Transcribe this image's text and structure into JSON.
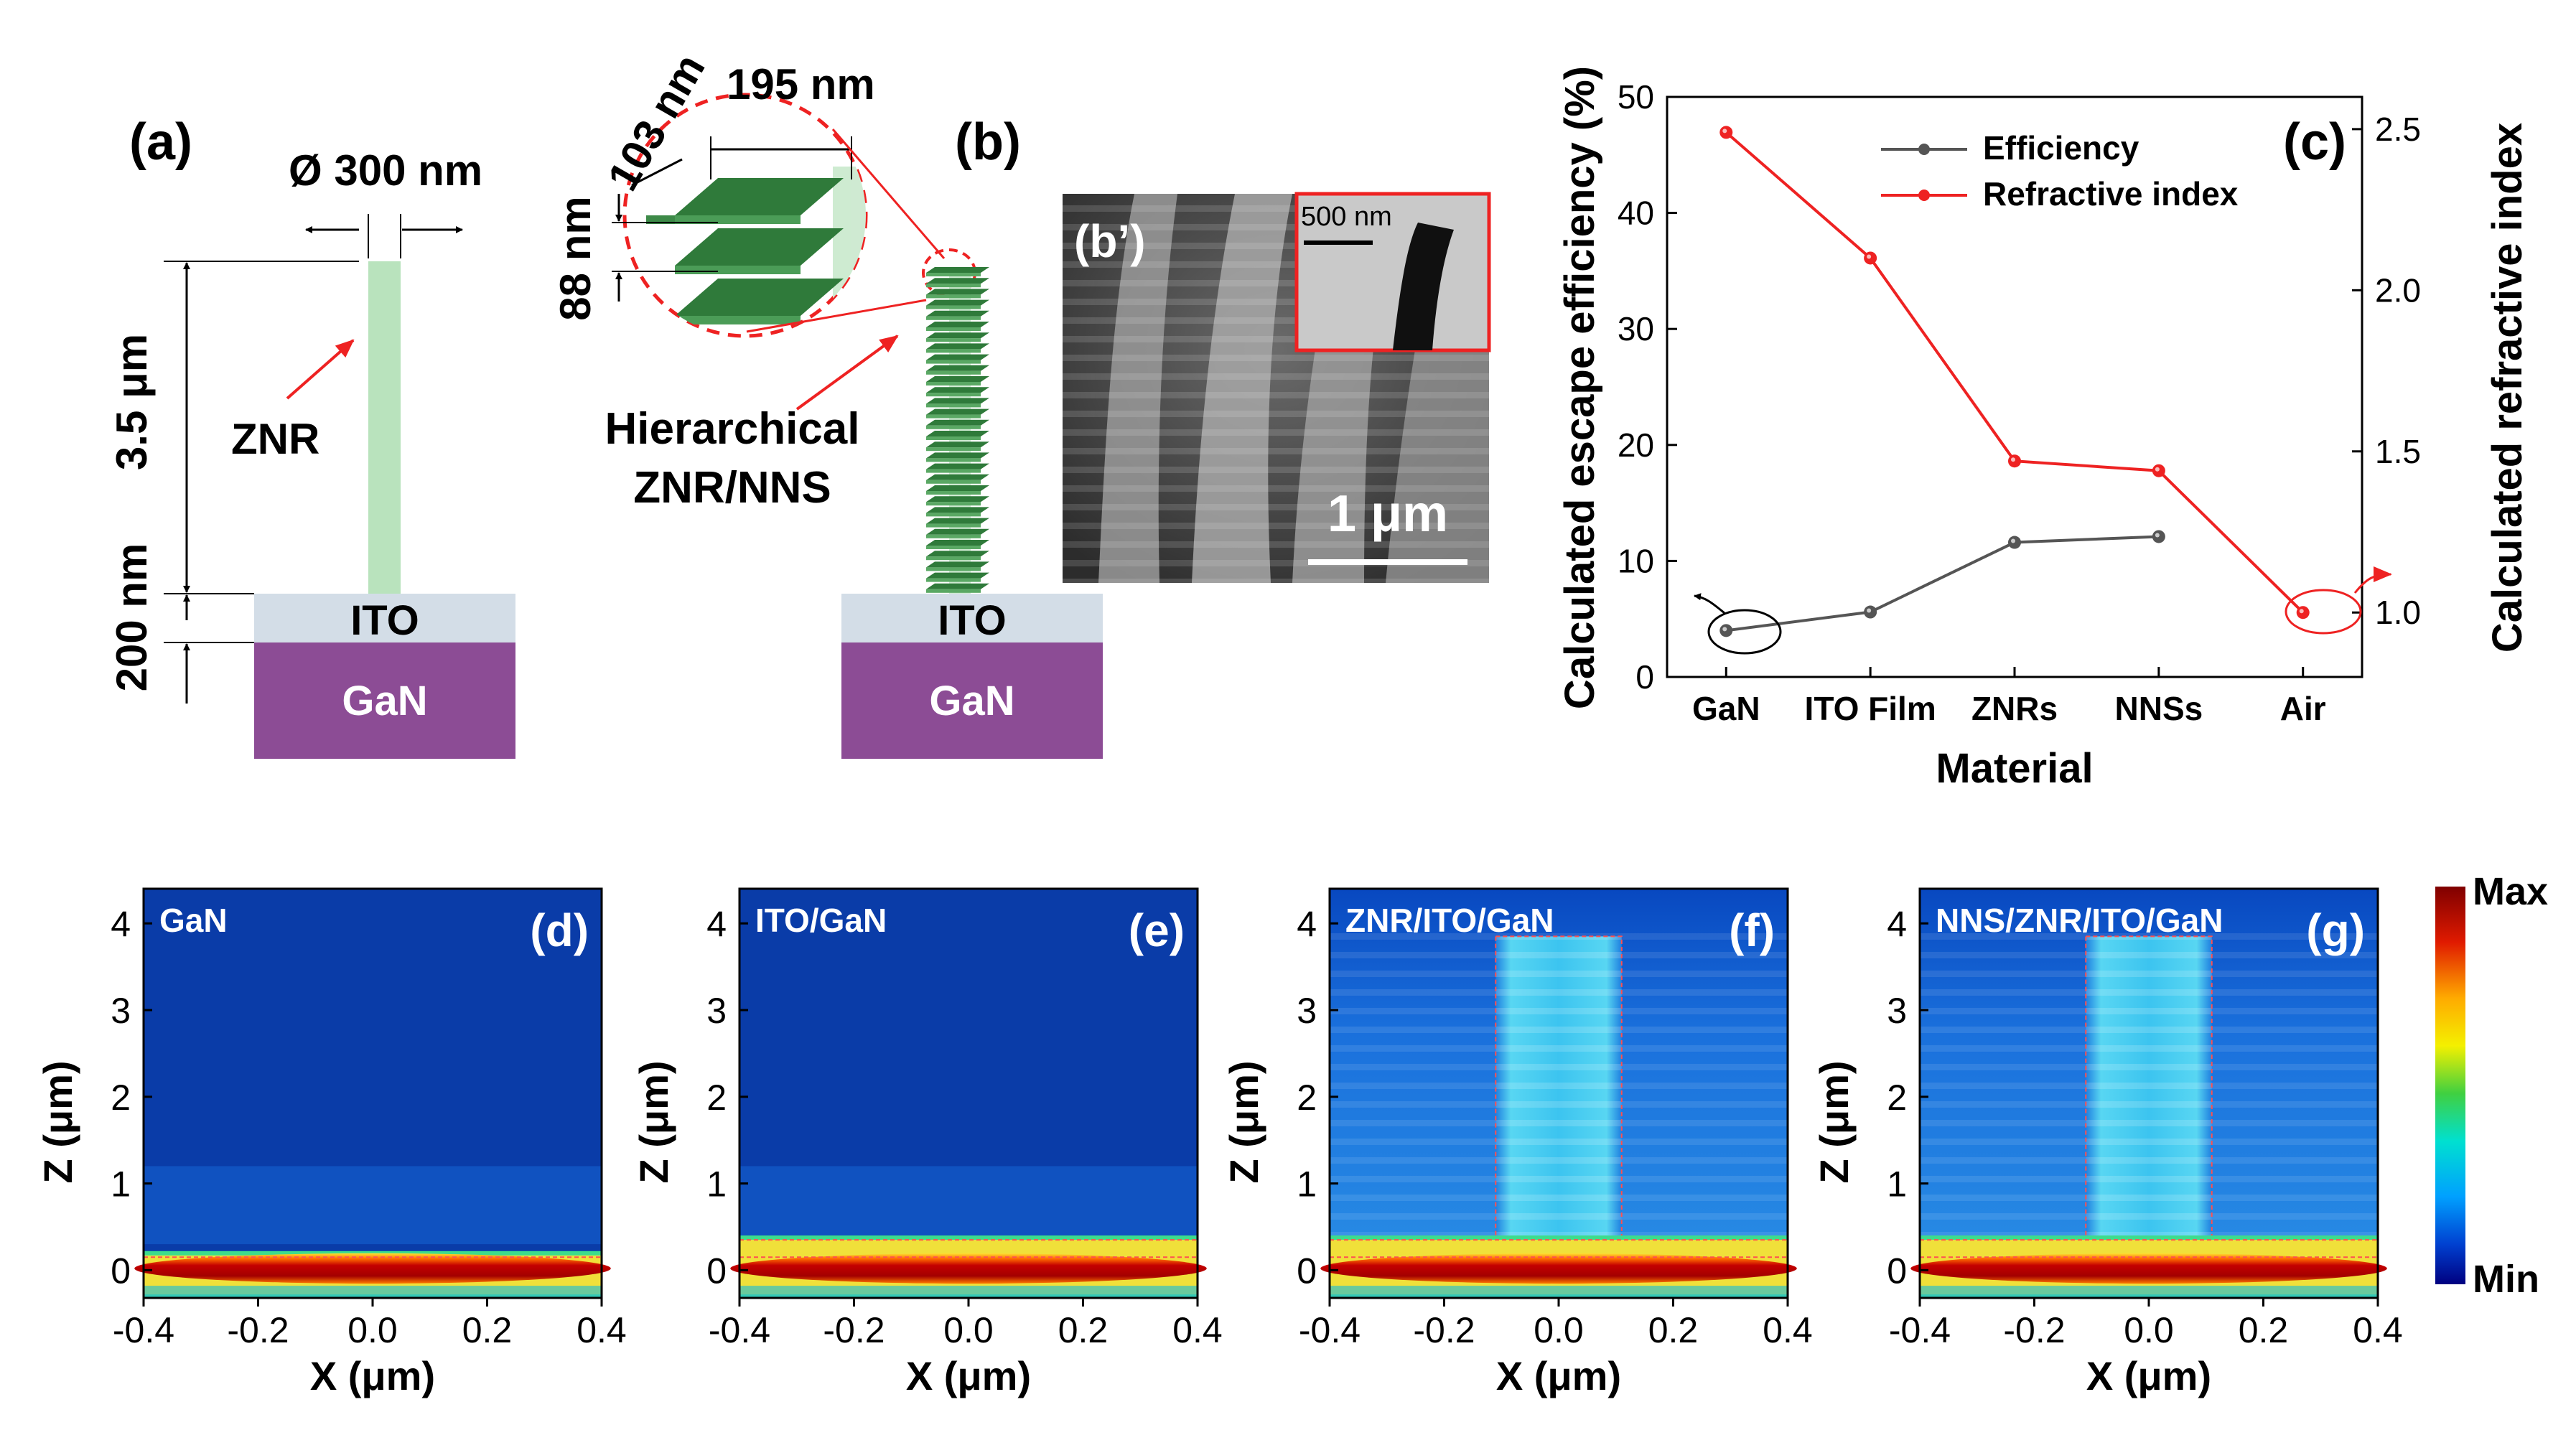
{
  "panels": {
    "a": {
      "label": "(a)",
      "diameter": "Ø 300 nm",
      "height": "3.5 μm",
      "ito_thickness": "200 nm",
      "rod_label": "ZNR",
      "ito": "ITO",
      "gan": "GaN"
    },
    "b": {
      "label": "(b)",
      "width": "195 nm",
      "sheet": "103 nm",
      "spacing": "88 nm",
      "struct_line1": "Hierarchical",
      "struct_line2": "ZNR/NNS",
      "ito": "ITO",
      "gan": "GaN"
    },
    "b_prime": {
      "label": "(b’)",
      "scale": "1 μm",
      "inset_scale": "500 nm"
    },
    "c": {
      "label": "(c)"
    },
    "field_maps": [
      {
        "title": "GaN",
        "label": "(d)"
      },
      {
        "title": "ITO/GaN",
        "label": "(e)"
      },
      {
        "title": "ZNR/ITO/GaN",
        "label": "(f)"
      },
      {
        "title": "NNS/ZNR/ITO/GaN",
        "label": "(g)"
      }
    ],
    "field_axes": {
      "xlabel": "X (μm)",
      "ylabel": "Z (μm)",
      "xticks": [
        "-0.4",
        "-0.2",
        "0.0",
        "0.2",
        "0.4"
      ],
      "yticks": [
        "0",
        "1",
        "2",
        "3",
        "4"
      ]
    },
    "colorbar": {
      "max": "Max",
      "min": "Min"
    }
  },
  "chart_data": {
    "type": "line",
    "categories": [
      "GaN",
      "ITO Film",
      "ZNRs",
      "NNSs",
      "Air"
    ],
    "xlabel": "Material",
    "ylabel": "Calculated escape efficiency (%)",
    "y2label": "Calculated refractive index",
    "ylim": [
      0,
      50
    ],
    "y2lim": [
      0.8,
      2.6
    ],
    "yticks": [
      0,
      10,
      20,
      30,
      40,
      50
    ],
    "y2ticks": [
      "1.0",
      "1.5",
      "2.0",
      "2.5"
    ],
    "legend_position": "top-center",
    "series": [
      {
        "name": "Efficiency",
        "axis": "left",
        "color": "#555555",
        "values": [
          4.0,
          5.6,
          11.6,
          12.1,
          null
        ]
      },
      {
        "name": "Refractive index",
        "axis": "right",
        "color": "#ee2222",
        "values": [
          2.49,
          2.1,
          1.47,
          1.44,
          1.0
        ]
      }
    ]
  }
}
